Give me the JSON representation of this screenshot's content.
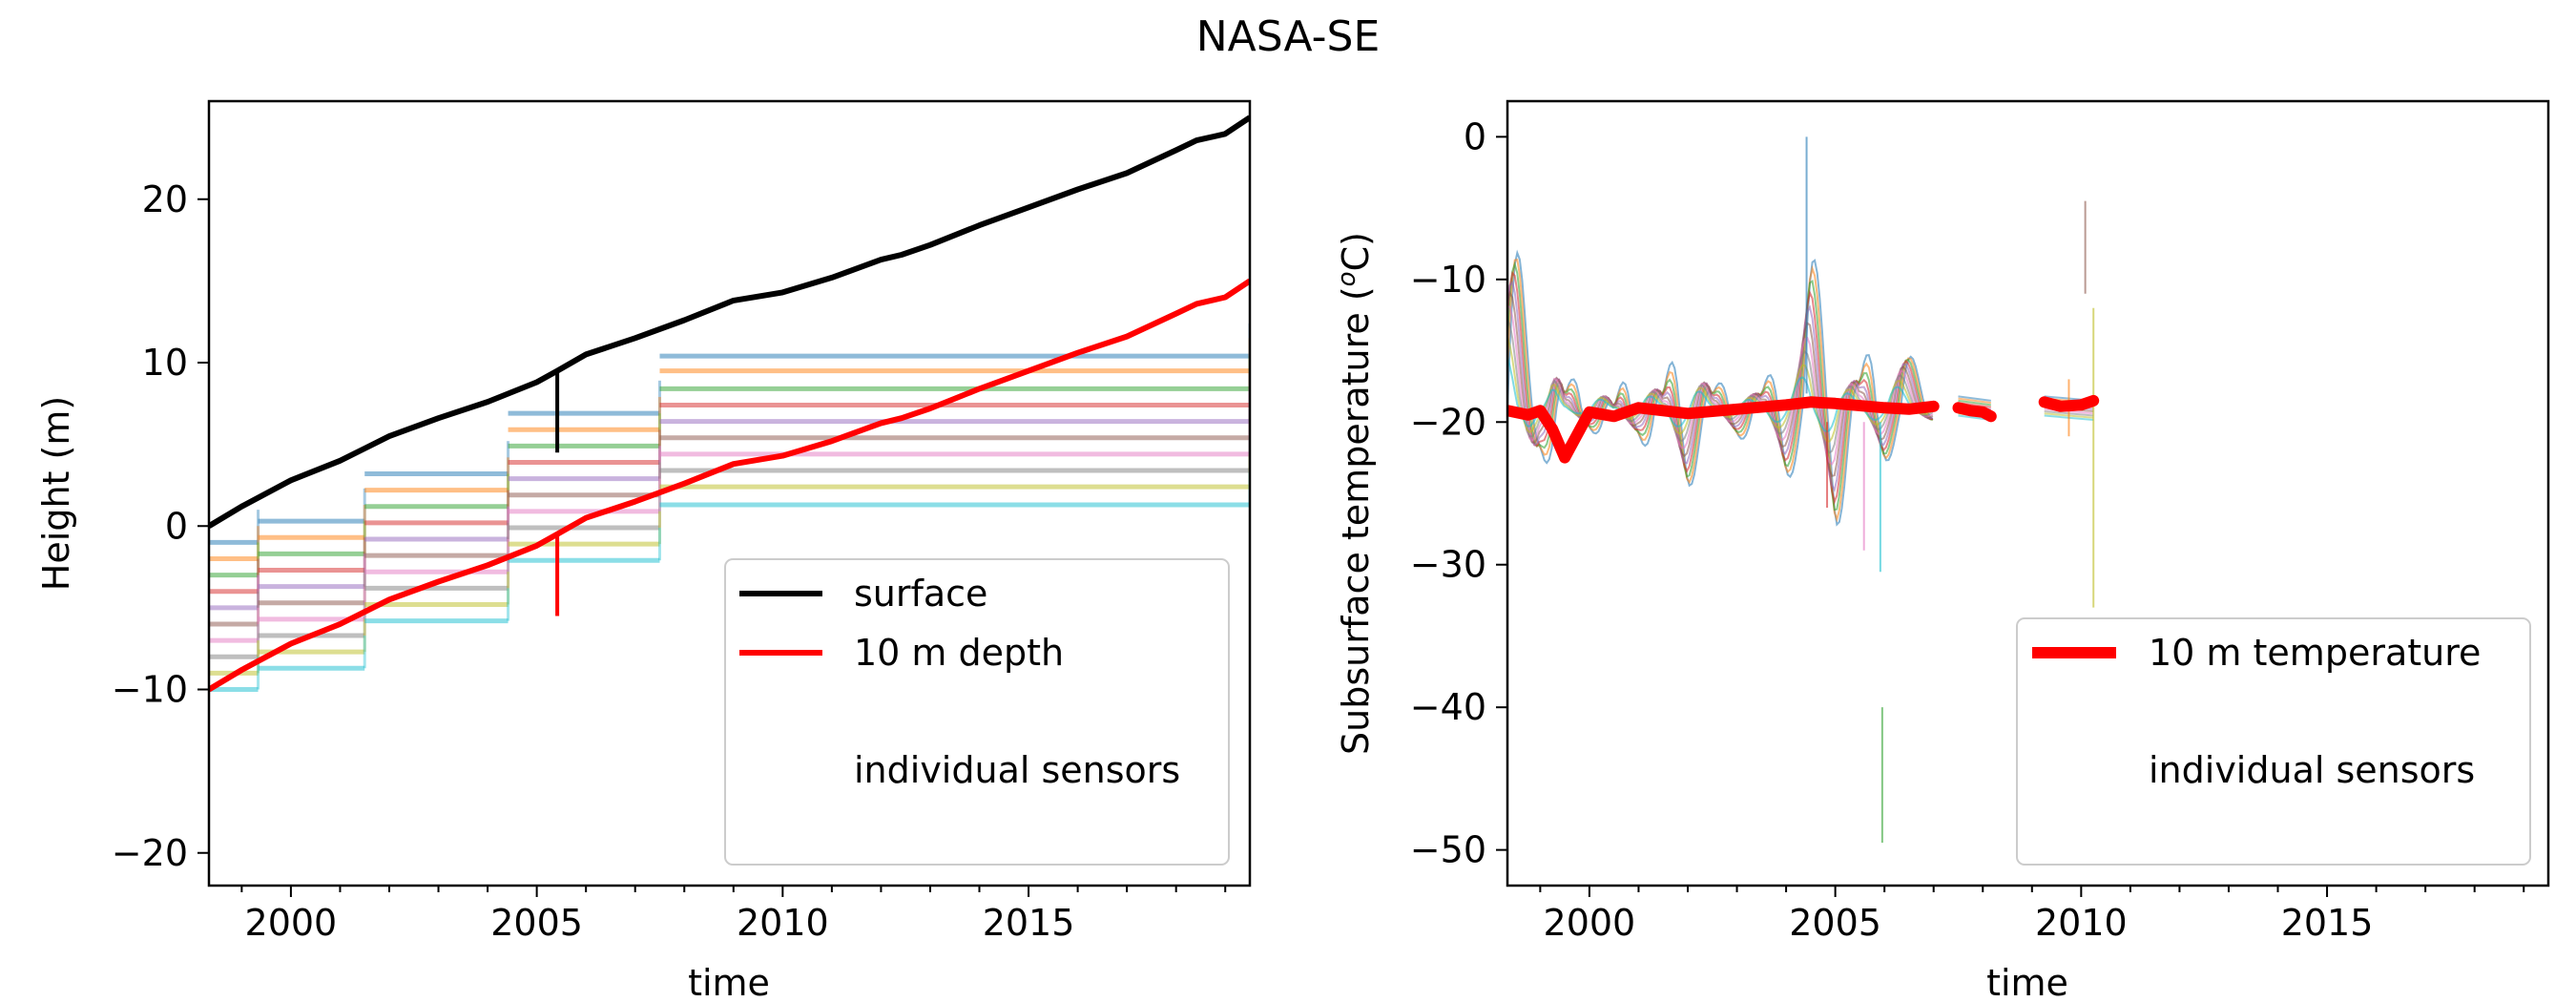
{
  "figure": {
    "suptitle": "NASA-SE"
  },
  "colors": {
    "surface": "#000000",
    "depth10m": "#ff0000",
    "sensor_palette": [
      "#1f77b4",
      "#ff7f0e",
      "#2ca02c",
      "#d62728",
      "#9467bd",
      "#8c564b",
      "#e377c2",
      "#7f7f7f",
      "#bcbd22",
      "#17becf"
    ]
  },
  "chart_data": [
    {
      "type": "line",
      "panel": "left",
      "title": "",
      "xlabel": "time",
      "ylabel": "Height (m)",
      "xlim": [
        "1998-05-01",
        "2019-07-01"
      ],
      "ylim": [
        -22,
        26
      ],
      "xticks": [
        "2000",
        "2005",
        "2010",
        "2015"
      ],
      "yticks": [
        -20,
        -10,
        0,
        10,
        20
      ],
      "grid": false,
      "legend": {
        "position": "lower-right",
        "entries": [
          "surface",
          "10 m depth",
          "individual sensors"
        ]
      },
      "series": [
        {
          "name": "surface",
          "color": "#000000",
          "x": [
            "1998-05-01",
            "1999-01-01",
            "2000-01-01",
            "2001-01-01",
            "2002-01-01",
            "2003-01-01",
            "2004-01-01",
            "2005-01-01",
            "2005-06-01",
            "2006-01-01",
            "2007-01-01",
            "2008-01-01",
            "2009-01-01",
            "2010-01-01",
            "2011-01-01",
            "2012-01-01",
            "2012-06-01",
            "2013-01-01",
            "2014-01-01",
            "2015-01-01",
            "2016-01-01",
            "2017-01-01",
            "2018-01-01",
            "2018-06-01",
            "2019-01-01",
            "2019-07-01"
          ],
          "y": [
            0,
            1.2,
            2.8,
            4.0,
            5.5,
            6.6,
            7.6,
            8.8,
            9.5,
            10.5,
            11.5,
            12.6,
            13.8,
            14.3,
            15.2,
            16.3,
            16.6,
            17.2,
            18.4,
            19.5,
            20.6,
            21.6,
            23.0,
            23.6,
            24.0,
            25.0
          ]
        },
        {
          "name": "10 m depth",
          "color": "#ff0000",
          "x": [
            "1998-05-01",
            "1999-01-01",
            "2000-01-01",
            "2001-01-01",
            "2002-01-01",
            "2003-01-01",
            "2004-01-01",
            "2005-01-01",
            "2005-06-01",
            "2006-01-01",
            "2007-01-01",
            "2008-01-01",
            "2009-01-01",
            "2010-01-01",
            "2011-01-01",
            "2012-01-01",
            "2012-06-01",
            "2013-01-01",
            "2014-01-01",
            "2015-01-01",
            "2016-01-01",
            "2017-01-01",
            "2018-01-01",
            "2018-06-01",
            "2019-01-01",
            "2019-07-01"
          ],
          "y": [
            -10,
            -8.8,
            -7.2,
            -6.0,
            -4.5,
            -3.4,
            -2.4,
            -1.2,
            -0.5,
            0.5,
            1.5,
            2.6,
            3.8,
            4.3,
            5.2,
            6.3,
            6.6,
            7.2,
            8.4,
            9.5,
            10.6,
            11.6,
            13.0,
            13.6,
            14.0,
            15.0
          ]
        }
      ],
      "sensor_batches": [
        {
          "start": "1998-05-01",
          "end": "1999-05-01",
          "levels": [
            -1,
            -2,
            -3,
            -4,
            -5,
            -6,
            -7,
            -8,
            -9,
            -10
          ]
        },
        {
          "start": "1999-05-01",
          "end": "2001-07-01",
          "levels": [
            0.3,
            -0.7,
            -1.7,
            -2.7,
            -3.7,
            -4.7,
            -5.7,
            -6.7,
            -7.7,
            -8.7
          ]
        },
        {
          "start": "2001-07-01",
          "end": "2004-06-01",
          "levels": [
            3.2,
            2.2,
            1.2,
            0.2,
            -0.8,
            -1.8,
            -2.8,
            -3.8,
            -4.8,
            -5.8
          ]
        },
        {
          "start": "2004-06-01",
          "end": "2007-07-01",
          "levels": [
            6.9,
            5.9,
            4.9,
            3.9,
            2.9,
            1.9,
            0.9,
            -0.1,
            -1.1,
            -2.1
          ]
        },
        {
          "start": "2007-07-01",
          "end": "2019-07-01",
          "levels": [
            10.4,
            9.5,
            8.4,
            7.4,
            6.4,
            5.4,
            4.4,
            3.4,
            2.4,
            1.3
          ]
        }
      ]
    },
    {
      "type": "line",
      "panel": "right",
      "title": "",
      "xlabel": "time",
      "ylabel": "Subsurface temperature (°C)",
      "ylabel_main": "Subsurface temperature (",
      "ylabel_unit": "o",
      "ylabel_tail": "C)",
      "xlim": [
        "1998-05-01",
        "2019-07-01"
      ],
      "ylim": [
        -52.5,
        2.5
      ],
      "xticks": [
        "2000",
        "2005",
        "2010",
        "2015"
      ],
      "yticks": [
        0,
        -10,
        -20,
        -30,
        -40,
        -50
      ],
      "grid": false,
      "legend": {
        "position": "lower-right",
        "entries": [
          "10 m temperature",
          "individual sensors"
        ]
      },
      "series": [
        {
          "name": "10 m temperature",
          "color": "#ff0000",
          "segments": [
            {
              "x": [
                "1998-05-01",
                "1998-10-01",
                "1999-01-01",
                "1999-04-01",
                "1999-07-01",
                "2000-01-01",
                "2000-07-01",
                "2001-01-01",
                "2002-01-01",
                "2003-01-01",
                "2004-01-01",
                "2004-07-01",
                "2005-01-01",
                "2006-01-01",
                "2006-07-01",
                "2007-01-01"
              ],
              "y": [
                -19.2,
                -19.5,
                -19.2,
                -20.5,
                -22.5,
                -19.3,
                -19.6,
                -19.0,
                -19.4,
                -19.1,
                -18.8,
                -18.6,
                -18.7,
                -19.0,
                -19.1,
                -18.9
              ]
            },
            {
              "x": [
                "2007-07-01",
                "2007-10-01",
                "2008-01-01",
                "2008-03-01"
              ],
              "y": [
                -19.0,
                -19.2,
                -19.3,
                -19.6
              ]
            },
            {
              "x": [
                "2009-04-01",
                "2009-08-01",
                "2010-01-01",
                "2010-04-01"
              ],
              "y": [
                -18.6,
                -18.9,
                -18.8,
                -18.5
              ]
            }
          ]
        }
      ],
      "sensor_envelope": {
        "x": [
          "1998-05-01",
          "1998-10-01",
          "1999-01-01",
          "1999-04-01",
          "1999-07-01",
          "2000-01-01",
          "2000-07-01",
          "2001-01-01",
          "2001-07-01",
          "2002-01-01",
          "2002-07-01",
          "2003-01-01",
          "2003-07-01",
          "2004-01-01",
          "2004-07-01",
          "2005-01-01",
          "2005-07-01",
          "2006-01-01",
          "2006-07-01",
          "2007-01-01"
        ],
        "upper": [
          -3.5,
          -12.0,
          -17.0,
          -13.0,
          -18.0,
          -14.0,
          -19.0,
          -13.0,
          -18.0,
          -10.0,
          -18.0,
          -15.0,
          -18.0,
          -13.0,
          -8.0,
          -12.0,
          -17.0,
          -10.0,
          -15.0,
          -18.5
        ],
        "lower": [
          -21.0,
          -25.0,
          -22.0,
          -24.0,
          -21.0,
          -20.5,
          -22.0,
          -21.0,
          -24.0,
          -25.0,
          -21.0,
          -21.0,
          -22.0,
          -24.0,
          -23.0,
          -28.0,
          -22.0,
          -23.0,
          -21.0,
          -20.0
        ]
      },
      "spikes": [
        {
          "x": "2004-06-01",
          "y1": -18.0,
          "y2": 0.0
        },
        {
          "x": "2004-11-01",
          "y1": -20.0,
          "y2": -26.0
        },
        {
          "x": "2005-08-01",
          "y1": -20.0,
          "y2": -29.0
        },
        {
          "x": "2005-12-01",
          "y1": -20.0,
          "y2": -30.5
        },
        {
          "x": "2005-12-15",
          "y1": -40.0,
          "y2": -49.5
        },
        {
          "x": "2010-02-01",
          "y1": -4.5,
          "y2": -11.0
        },
        {
          "x": "2010-04-01",
          "y1": -12.0,
          "y2": -33.0
        },
        {
          "x": "2009-10-01",
          "y1": -17.0,
          "y2": -21.0
        }
      ]
    }
  ]
}
